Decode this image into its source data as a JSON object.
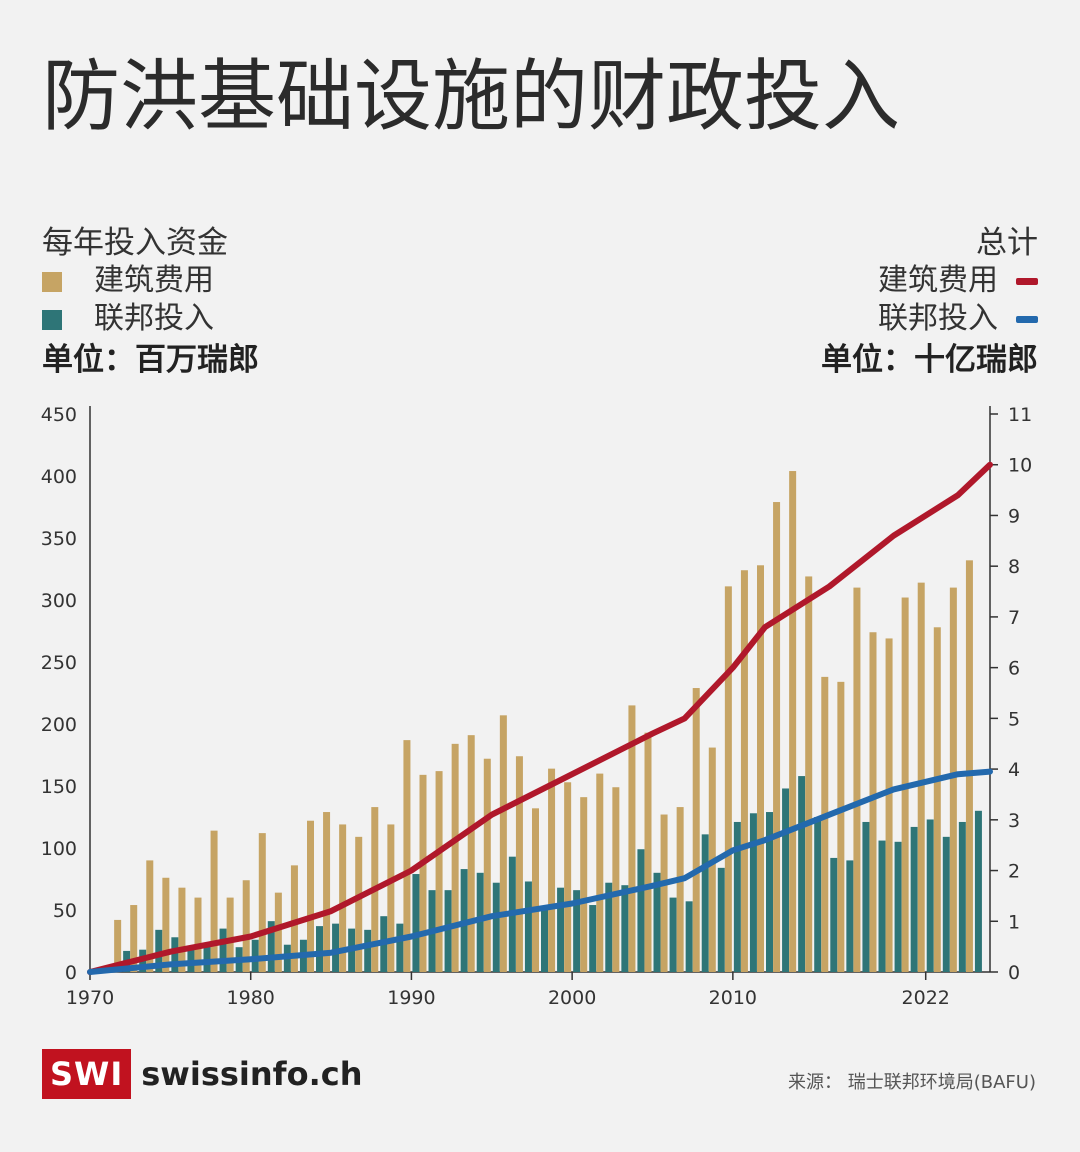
{
  "title": "防洪基础设施的财政投入",
  "legend_left": {
    "heading": "每年投入资金",
    "items": [
      {
        "label": "建筑费用",
        "color": "#c6a464"
      },
      {
        "label": "联邦投入",
        "color": "#2e7577"
      }
    ],
    "unit": "单位：百万瑞郎"
  },
  "legend_right": {
    "heading": "总计",
    "items": [
      {
        "label": "建筑费用",
        "color": "#b0182b"
      },
      {
        "label": "联邦投入",
        "color": "#2369ad"
      }
    ],
    "unit": "单位：十亿瑞郎"
  },
  "chart_data": {
    "type": "bar",
    "x": [
      1972,
      1973,
      1974,
      1975,
      1976,
      1977,
      1978,
      1979,
      1980,
      1981,
      1982,
      1983,
      1984,
      1985,
      1986,
      1987,
      1988,
      1989,
      1990,
      1991,
      1992,
      1993,
      1994,
      1995,
      1996,
      1997,
      1998,
      1999,
      2000,
      2001,
      2002,
      2003,
      2004,
      2005,
      2006,
      2007,
      2008,
      2009,
      2010,
      2011,
      2012,
      2013,
      2014,
      2015,
      2016,
      2017,
      2018,
      2019,
      2020,
      2021,
      2022,
      2023,
      2024,
      2025,
      2026
    ],
    "series": [
      {
        "name": "建筑费用",
        "axis": "left",
        "type": "bar",
        "color": "#c6a464",
        "values": [
          42,
          54,
          90,
          76,
          68,
          60,
          114,
          60,
          74,
          112,
          64,
          86,
          122,
          129,
          119,
          109,
          133,
          119,
          187,
          159,
          162,
          184,
          191,
          172,
          207,
          174,
          132,
          164,
          153,
          141,
          160,
          149,
          215,
          193,
          127,
          133,
          229,
          181,
          311,
          324,
          328,
          379,
          404,
          319,
          238,
          234,
          310,
          274,
          269,
          302,
          314,
          278,
          310,
          332,
          0
        ]
      },
      {
        "name": "联邦投入",
        "axis": "left",
        "type": "bar",
        "color": "#2e7577",
        "values": [
          17,
          18,
          34,
          28,
          21,
          22,
          35,
          20,
          26,
          41,
          22,
          26,
          37,
          39,
          35,
          34,
          45,
          39,
          79,
          66,
          66,
          83,
          80,
          72,
          93,
          73,
          53,
          68,
          66,
          54,
          72,
          70,
          99,
          80,
          60,
          57,
          111,
          84,
          121,
          128,
          129,
          148,
          158,
          125,
          92,
          90,
          121,
          106,
          105,
          117,
          123,
          109,
          121,
          130,
          0
        ]
      },
      {
        "name": "建筑费用",
        "axis": "right",
        "type": "line",
        "color": "#b0182b",
        "points": [
          [
            1970,
            0
          ],
          [
            1975,
            0.4
          ],
          [
            1980,
            0.7
          ],
          [
            1985,
            1.2
          ],
          [
            1990,
            2.0
          ],
          [
            1995,
            3.1
          ],
          [
            2000,
            3.9
          ],
          [
            2005,
            4.7
          ],
          [
            2007,
            5.0
          ],
          [
            2010,
            6.0
          ],
          [
            2012,
            6.8
          ],
          [
            2016,
            7.6
          ],
          [
            2020,
            8.6
          ],
          [
            2024,
            9.4
          ],
          [
            2026,
            10.0
          ]
        ]
      },
      {
        "name": "联邦投入",
        "axis": "right",
        "type": "line",
        "color": "#2369ad",
        "points": [
          [
            1970,
            0
          ],
          [
            1975,
            0.15
          ],
          [
            1980,
            0.25
          ],
          [
            1985,
            0.38
          ],
          [
            1990,
            0.7
          ],
          [
            1995,
            1.1
          ],
          [
            2000,
            1.35
          ],
          [
            2005,
            1.7
          ],
          [
            2007,
            1.85
          ],
          [
            2010,
            2.4
          ],
          [
            2012,
            2.6
          ],
          [
            2016,
            3.1
          ],
          [
            2020,
            3.6
          ],
          [
            2024,
            3.9
          ],
          [
            2026,
            3.95
          ]
        ]
      }
    ],
    "y_left": {
      "range": [
        0,
        450
      ],
      "ticks": [
        "0",
        "50",
        "100",
        "150",
        "200",
        "250",
        "300",
        "350",
        "400",
        "450"
      ]
    },
    "y_right": {
      "range": [
        0,
        11
      ],
      "ticks": [
        "0",
        "1",
        "2",
        "3",
        "4",
        "5",
        "6",
        "7",
        "8",
        "9",
        "10",
        "11"
      ],
      "highlight": {
        "10": "#b0182b",
        "4": "#2369ad"
      }
    },
    "x_ticks": [
      {
        "label": "1970",
        "year": 1970
      },
      {
        "label": "1980",
        "year": 1980
      },
      {
        "label": "1990",
        "year": 1990
      },
      {
        "label": "2000",
        "year": 2000
      },
      {
        "label": "2010",
        "year": 2010
      },
      {
        "label": "2022",
        "year": 2022
      }
    ],
    "x_range": [
      1970,
      2026
    ]
  },
  "footer": {
    "logo_box": "SWI",
    "logo_text": "swissinfo.ch",
    "source": "来源： 瑞士联邦环境局(BAFU)"
  }
}
